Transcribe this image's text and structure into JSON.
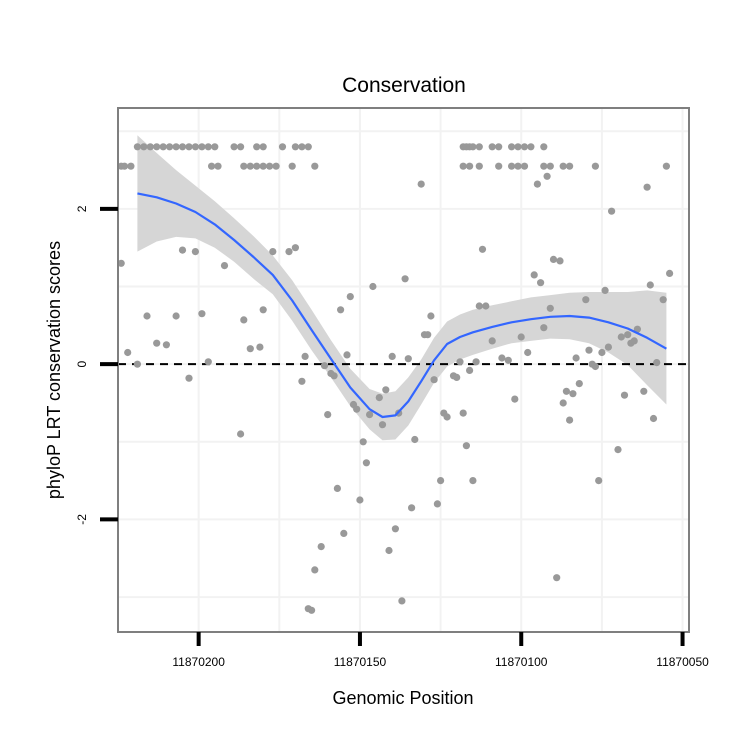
{
  "chart_data": {
    "type": "scatter",
    "title": "Conservation",
    "xlabel": "Genomic Position",
    "ylabel": "phyloP LRT conservation scores",
    "xlim": [
      11870225,
      11870048
    ],
    "ylim": [
      -3.45,
      3.3
    ],
    "x_reversed": true,
    "x_ticks": [
      11870200,
      11870150,
      11870100,
      11870050
    ],
    "x_tick_labels": [
      "11870200",
      "11870150",
      "11870100",
      "11870050"
    ],
    "y_ticks": [
      -2,
      0,
      2
    ],
    "y_tick_labels": [
      "-2",
      "0",
      "2"
    ],
    "grid": true,
    "reference_line": {
      "y": 0,
      "style": "dashed"
    },
    "colors": {
      "points": "#999999",
      "smooth_line": "#3366FF",
      "confidence_band": "#D6D6D6",
      "panel_border": "#7F7F7F",
      "grid": "#F2F2F2"
    },
    "points": [
      [
        11870219,
        2.8
      ],
      [
        11870217,
        2.8
      ],
      [
        11870215,
        2.8
      ],
      [
        11870213,
        2.8
      ],
      [
        11870211,
        2.8
      ],
      [
        11870209,
        2.8
      ],
      [
        11870207,
        2.8
      ],
      [
        11870205,
        2.8
      ],
      [
        11870203,
        2.8
      ],
      [
        11870201,
        2.8
      ],
      [
        11870199,
        2.8
      ],
      [
        11870197,
        2.8
      ],
      [
        11870195,
        2.8
      ],
      [
        11870189,
        2.8
      ],
      [
        11870187,
        2.8
      ],
      [
        11870182,
        2.8
      ],
      [
        11870180,
        2.8
      ],
      [
        11870174,
        2.8
      ],
      [
        11870170,
        2.8
      ],
      [
        11870168,
        2.8
      ],
      [
        11870166,
        2.8
      ],
      [
        11870224,
        2.55
      ],
      [
        11870223,
        2.55
      ],
      [
        11870221,
        2.55
      ],
      [
        11870196,
        2.55
      ],
      [
        11870194,
        2.55
      ],
      [
        11870186,
        2.55
      ],
      [
        11870184,
        2.55
      ],
      [
        11870182,
        2.55
      ],
      [
        11870180,
        2.55
      ],
      [
        11870178,
        2.55
      ],
      [
        11870176,
        2.55
      ],
      [
        11870171,
        2.55
      ],
      [
        11870164,
        2.55
      ],
      [
        11870224,
        1.3
      ],
      [
        11870222,
        0.15
      ],
      [
        11870219,
        0
      ],
      [
        11870216,
        0.62
      ],
      [
        11870213,
        0.27
      ],
      [
        11870210,
        0.25
      ],
      [
        11870207,
        0.62
      ],
      [
        11870205,
        1.47
      ],
      [
        11870203,
        -0.18
      ],
      [
        11870201,
        1.45
      ],
      [
        11870199,
        0.65
      ],
      [
        11870197,
        0.03
      ],
      [
        11870192,
        1.27
      ],
      [
        11870187,
        -0.9
      ],
      [
        11870186,
        0.57
      ],
      [
        11870184,
        0.2
      ],
      [
        11870181,
        0.22
      ],
      [
        11870180,
        0.7
      ],
      [
        11870177,
        1.45
      ],
      [
        11870172,
        1.45
      ],
      [
        11870170,
        1.5
      ],
      [
        11870168,
        -0.22
      ],
      [
        11870167,
        0.1
      ],
      [
        11870166,
        -3.15
      ],
      [
        11870165,
        -3.17
      ],
      [
        11870164,
        -2.65
      ],
      [
        11870162,
        -2.35
      ],
      [
        11870161,
        -0.02
      ],
      [
        11870160,
        -0.65
      ],
      [
        11870159,
        -0.12
      ],
      [
        11870158,
        -0.15
      ],
      [
        11870157,
        -1.6
      ],
      [
        11870156,
        0.7
      ],
      [
        11870155,
        -2.18
      ],
      [
        11870154,
        0.12
      ],
      [
        11870153,
        0.87
      ],
      [
        11870152,
        -0.52
      ],
      [
        11870151,
        -0.58
      ],
      [
        11870150,
        -1.75
      ],
      [
        11870149,
        -1.0
      ],
      [
        11870148,
        -1.27
      ],
      [
        11870147,
        -0.65
      ],
      [
        11870146,
        1.0
      ],
      [
        11870144,
        -0.43
      ],
      [
        11870143,
        -0.78
      ],
      [
        11870142,
        -0.33
      ],
      [
        11870141,
        -2.4
      ],
      [
        11870140,
        0.1
      ],
      [
        11870139,
        -2.12
      ],
      [
        11870138,
        -0.63
      ],
      [
        11870137,
        -3.05
      ],
      [
        11870136,
        1.1
      ],
      [
        11870135,
        0.07
      ],
      [
        11870134,
        -1.85
      ],
      [
        11870133,
        -0.97
      ],
      [
        11870131,
        2.32
      ],
      [
        11870130,
        0.38
      ],
      [
        11870129,
        0.38
      ],
      [
        11870128,
        0.62
      ],
      [
        11870127,
        -0.2
      ],
      [
        11870126,
        -1.8
      ],
      [
        11870125,
        -1.5
      ],
      [
        11870124,
        -0.63
      ],
      [
        11870123,
        -0.68
      ],
      [
        11870121,
        -0.15
      ],
      [
        11870120,
        -0.17
      ],
      [
        11870119,
        0.03
      ],
      [
        11870118,
        -0.63
      ],
      [
        11870117,
        -1.05
      ],
      [
        11870116,
        -0.08
      ],
      [
        11870115,
        -1.5
      ],
      [
        11870114,
        0.03
      ],
      [
        11870113,
        0.75
      ],
      [
        11870112,
        1.48
      ],
      [
        11870111,
        0.75
      ],
      [
        11870109,
        0.3
      ],
      [
        11870106,
        0.08
      ],
      [
        11870104,
        0.05
      ],
      [
        11870102,
        -0.45
      ],
      [
        11870100,
        0.35
      ],
      [
        11870098,
        0.15
      ],
      [
        11870096,
        1.15
      ],
      [
        11870094,
        1.05
      ],
      [
        11870093,
        0.47
      ],
      [
        11870091,
        0.72
      ],
      [
        11870090,
        1.35
      ],
      [
        11870089,
        -2.75
      ],
      [
        11870088,
        1.33
      ],
      [
        11870087,
        -0.5
      ],
      [
        11870086,
        -0.35
      ],
      [
        11870085,
        -0.72
      ],
      [
        11870084,
        -0.38
      ],
      [
        11870083,
        0.08
      ],
      [
        11870082,
        -0.25
      ],
      [
        11870080,
        0.83
      ],
      [
        11870079,
        0.18
      ],
      [
        11870078,
        0.0
      ],
      [
        11870077,
        -0.03
      ],
      [
        11870076,
        -1.5
      ],
      [
        11870075,
        0.15
      ],
      [
        11870074,
        0.95
      ],
      [
        11870073,
        0.22
      ],
      [
        11870072,
        1.97
      ],
      [
        11870070,
        -1.1
      ],
      [
        11870069,
        0.35
      ],
      [
        11870068,
        -0.4
      ],
      [
        11870067,
        0.38
      ],
      [
        11870066,
        0.27
      ],
      [
        11870065,
        0.3
      ],
      [
        11870064,
        0.45
      ],
      [
        11870062,
        -0.35
      ],
      [
        11870061,
        2.28
      ],
      [
        11870060,
        1.02
      ],
      [
        11870059,
        -0.7
      ],
      [
        11870058,
        0.02
      ],
      [
        11870056,
        0.83
      ],
      [
        11870055,
        2.55
      ],
      [
        11870054,
        1.17
      ],
      [
        11870118,
        2.8
      ],
      [
        11870117,
        2.8
      ],
      [
        11870116,
        2.8
      ],
      [
        11870115,
        2.8
      ],
      [
        11870113,
        2.8
      ],
      [
        11870109,
        2.8
      ],
      [
        11870107,
        2.8
      ],
      [
        11870103,
        2.8
      ],
      [
        11870101,
        2.8
      ],
      [
        11870099,
        2.8
      ],
      [
        11870097,
        2.8
      ],
      [
        11870093,
        2.8
      ],
      [
        11870118,
        2.55
      ],
      [
        11870116,
        2.55
      ],
      [
        11870113,
        2.55
      ],
      [
        11870107,
        2.55
      ],
      [
        11870103,
        2.55
      ],
      [
        11870101,
        2.55
      ],
      [
        11870099,
        2.55
      ],
      [
        11870093,
        2.55
      ],
      [
        11870091,
        2.55
      ],
      [
        11870087,
        2.55
      ],
      [
        11870077,
        2.55
      ],
      [
        11870095,
        2.32
      ],
      [
        11870092,
        2.42
      ],
      [
        11870085,
        2.55
      ]
    ],
    "smooth": {
      "x": [
        11870219,
        11870213,
        11870207,
        11870201,
        11870195,
        11870189,
        11870183,
        11870177,
        11870171,
        11870165,
        11870159,
        11870153,
        11870147,
        11870143,
        11870139,
        11870135,
        11870131,
        11870127,
        11870123,
        11870119,
        11870115,
        11870109,
        11870103,
        11870097,
        11870091,
        11870085,
        11870079,
        11870073,
        11870067,
        11870061,
        11870055
      ],
      "y": [
        2.2,
        2.15,
        2.07,
        1.96,
        1.8,
        1.6,
        1.38,
        1.15,
        0.82,
        0.44,
        0.07,
        -0.3,
        -0.58,
        -0.68,
        -0.66,
        -0.48,
        -0.22,
        0.05,
        0.26,
        0.35,
        0.41,
        0.48,
        0.54,
        0.58,
        0.61,
        0.62,
        0.6,
        0.54,
        0.46,
        0.34,
        0.2
      ],
      "upper": [
        2.95,
        2.72,
        2.5,
        2.3,
        2.1,
        1.88,
        1.65,
        1.4,
        1.08,
        0.7,
        0.31,
        -0.06,
        -0.32,
        -0.38,
        -0.35,
        -0.17,
        0.06,
        0.34,
        0.55,
        0.64,
        0.7,
        0.76,
        0.81,
        0.86,
        0.89,
        0.92,
        0.93,
        0.93,
        0.93,
        0.95,
        0.92
      ],
      "lower": [
        1.45,
        1.58,
        1.64,
        1.62,
        1.5,
        1.32,
        1.1,
        0.9,
        0.56,
        0.18,
        -0.17,
        -0.54,
        -0.84,
        -0.98,
        -0.97,
        -0.79,
        -0.52,
        -0.24,
        -0.03,
        0.06,
        0.12,
        0.2,
        0.27,
        0.3,
        0.33,
        0.32,
        0.27,
        0.15,
        -0.01,
        -0.27,
        -0.52
      ]
    }
  }
}
